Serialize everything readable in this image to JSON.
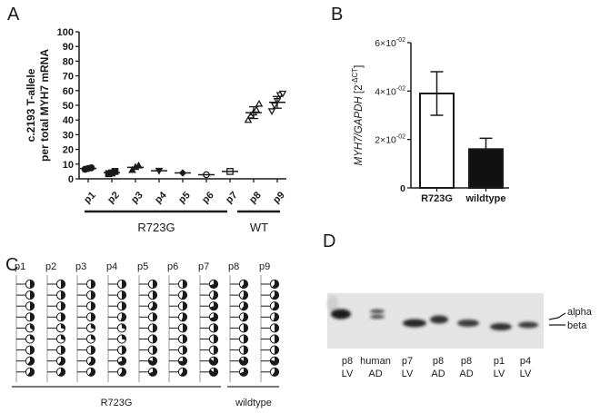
{
  "panels": {
    "A": {
      "letter": "A"
    },
    "B": {
      "letter": "B"
    },
    "C": {
      "letter": "C"
    },
    "D": {
      "letter": "D"
    }
  },
  "chart_data": [
    {
      "panel": "A",
      "type": "scatter",
      "title": "",
      "ylabel_line1": "c.2193 T-allele",
      "ylabel_line2": "per total MYH7 mRNA",
      "xlabel": "",
      "ylim": [
        0,
        100
      ],
      "yticks": [
        0,
        10,
        20,
        30,
        40,
        50,
        60,
        70,
        80,
        90,
        100
      ],
      "categories": [
        "p1",
        "p2",
        "p3",
        "p4",
        "p5",
        "p6",
        "p7",
        "p8",
        "p9"
      ],
      "markers": [
        "circle-filled",
        "square-filled",
        "triangle-filled",
        "triangle-down-filled",
        "diamond-filled",
        "circle-open",
        "square-open",
        "triangle-open",
        "triangle-down-open"
      ],
      "series": [
        {
          "name": "p1",
          "points": [
            6.5,
            7,
            7.5
          ],
          "mean": 7.0
        },
        {
          "name": "p2",
          "points": [
            3.5,
            4,
            5
          ],
          "mean": 4.2
        },
        {
          "name": "p3",
          "points": [
            6,
            8,
            9
          ],
          "mean": 7.8
        },
        {
          "name": "p4",
          "points": [
            5.5
          ],
          "mean": 5.5
        },
        {
          "name": "p5",
          "points": [
            4
          ],
          "mean": 4.0
        },
        {
          "name": "p6",
          "points": [
            2.8
          ],
          "mean": 2.8
        },
        {
          "name": "p7",
          "points": [
            5
          ],
          "mean": 5.0
        },
        {
          "name": "p8",
          "points": [
            40,
            43,
            45,
            47,
            51
          ],
          "mean": 45.0,
          "sd_low": 41,
          "sd_high": 49
        },
        {
          "name": "p9",
          "points": [
            46,
            50,
            53,
            57,
            58
          ],
          "mean": 52.0,
          "sd_low": 48,
          "sd_high": 56
        }
      ],
      "groups": [
        {
          "label": "R723G",
          "members": [
            "p1",
            "p2",
            "p3",
            "p4",
            "p5",
            "p6",
            "p7"
          ]
        },
        {
          "label": "WT",
          "members": [
            "p8",
            "p9"
          ]
        }
      ]
    },
    {
      "panel": "B",
      "type": "bar",
      "title": "",
      "ylabel_main": "MYH7/GAPDH [2",
      "ylabel_sup": "-ΔCT",
      "ylabel_close": "]",
      "ylim": [
        0,
        0.06
      ],
      "yticks": [
        {
          "value": 0,
          "label": "0",
          "exp": ""
        },
        {
          "value": 0.02,
          "label": "2×10",
          "exp": "-02"
        },
        {
          "value": 0.04,
          "label": "4×10",
          "exp": "-02"
        },
        {
          "value": 0.06,
          "label": "6×10",
          "exp": "-02"
        }
      ],
      "categories": [
        "R723G",
        "wildtype"
      ],
      "values": [
        0.039,
        0.016
      ],
      "errors_high": [
        0.048,
        0.0205
      ],
      "errors_low": [
        0.03,
        null
      ],
      "colors": [
        "#ffffff",
        "#111111"
      ]
    },
    {
      "panel": "C",
      "type": "table",
      "description": "Per-sample allele fraction pie glyphs (fraction black)",
      "columns": [
        "p1",
        "p2",
        "p3",
        "p4",
        "p5",
        "p6",
        "p7",
        "p8",
        "p9"
      ],
      "fractions": [
        [
          0.5,
          0.5,
          0.5,
          0.5,
          0.5,
          0.5,
          0.7,
          0.6,
          0.6
        ],
        [
          0.5,
          0.5,
          0.5,
          0.5,
          0.5,
          0.55,
          0.55,
          0.55,
          0.6
        ],
        [
          0.5,
          0.5,
          0.5,
          0.5,
          0.6,
          0.5,
          0.7,
          0.6,
          0.6
        ],
        [
          0.5,
          0.5,
          0.5,
          0.55,
          0.5,
          0.55,
          0.7,
          0.55,
          0.55
        ],
        [
          0.35,
          0.3,
          0.3,
          0.3,
          0.5,
          0.5,
          0.5,
          0.5,
          0.5
        ],
        [
          0.3,
          0.3,
          0.3,
          0.3,
          0.5,
          0.5,
          0.5,
          0.5,
          0.5
        ],
        [
          0.5,
          0.5,
          0.5,
          0.5,
          0.5,
          0.5,
          0.5,
          0.5,
          0.5
        ],
        [
          0.6,
          0.6,
          0.6,
          0.7,
          0.8,
          0.75,
          0.85,
          0.85,
          0.8
        ],
        [
          0.6,
          0.6,
          0.6,
          0.6,
          0.7,
          0.6,
          0.85,
          0.7,
          0.6
        ]
      ],
      "groups": [
        {
          "label": "R723G",
          "members": [
            "p1",
            "p2",
            "p3",
            "p4",
            "p5",
            "p6",
            "p7"
          ]
        },
        {
          "label": "wildtype",
          "members": [
            "p8",
            "p9"
          ]
        }
      ]
    },
    {
      "panel": "D",
      "type": "table",
      "description": "Western blot of myosin heavy chain isoforms",
      "lanes": [
        {
          "line1": "p8",
          "line2": "LV"
        },
        {
          "line1": "human",
          "line2": "AD"
        },
        {
          "line1": "p7",
          "line2": "LV"
        },
        {
          "line1": "p8",
          "line2": "AD"
        },
        {
          "line1": "p8",
          "line2": "AD"
        },
        {
          "line1": "p1",
          "line2": "LV"
        },
        {
          "line1": "p4",
          "line2": "LV"
        }
      ],
      "band_labels": [
        "alpha",
        "beta"
      ]
    }
  ]
}
